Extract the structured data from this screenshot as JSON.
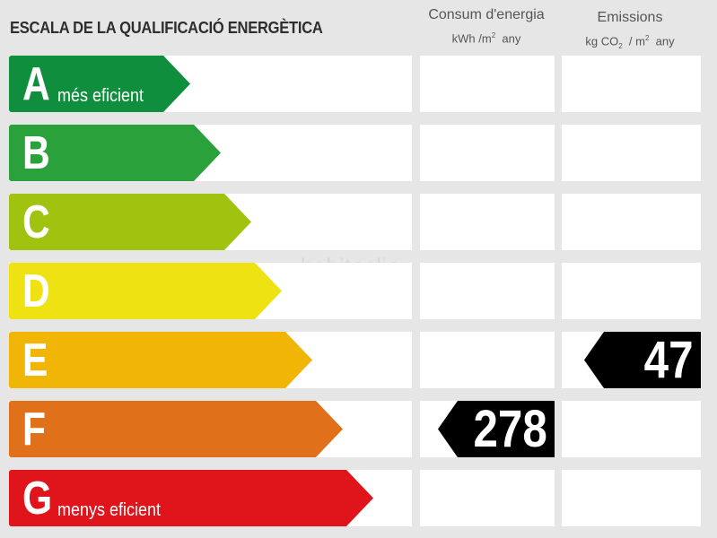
{
  "title": "ESCALA DE LA QUALIFICACIÓ ENERGÈTICA",
  "energy_header": {
    "line1": "Consum d'energia",
    "unit_main": "kWh /m",
    "unit_exp": "2",
    "unit_tail": "  any"
  },
  "emissions_header": {
    "line1": "Emissions",
    "unit_a": "kg CO",
    "unit_sub": "2",
    "unit_b": "  / m",
    "unit_exp": "2",
    "unit_tail": "  any"
  },
  "ratings": [
    {
      "letter": "A",
      "label": "més eficient",
      "color": "#0f8f3e"
    },
    {
      "letter": "B",
      "label": "",
      "color": "#2aa13a"
    },
    {
      "letter": "C",
      "label": "",
      "color": "#9fc30f"
    },
    {
      "letter": "D",
      "label": "",
      "color": "#eee212"
    },
    {
      "letter": "E",
      "label": "",
      "color": "#f0b505"
    },
    {
      "letter": "F",
      "label": "",
      "color": "#e0711a"
    },
    {
      "letter": "G",
      "label": "menys eficient",
      "color": "#e0151b"
    }
  ],
  "energy_value": {
    "value": "278",
    "rating": "F"
  },
  "emissions_value": {
    "value": "47",
    "rating": "E"
  },
  "watermark": "habitaclia"
}
